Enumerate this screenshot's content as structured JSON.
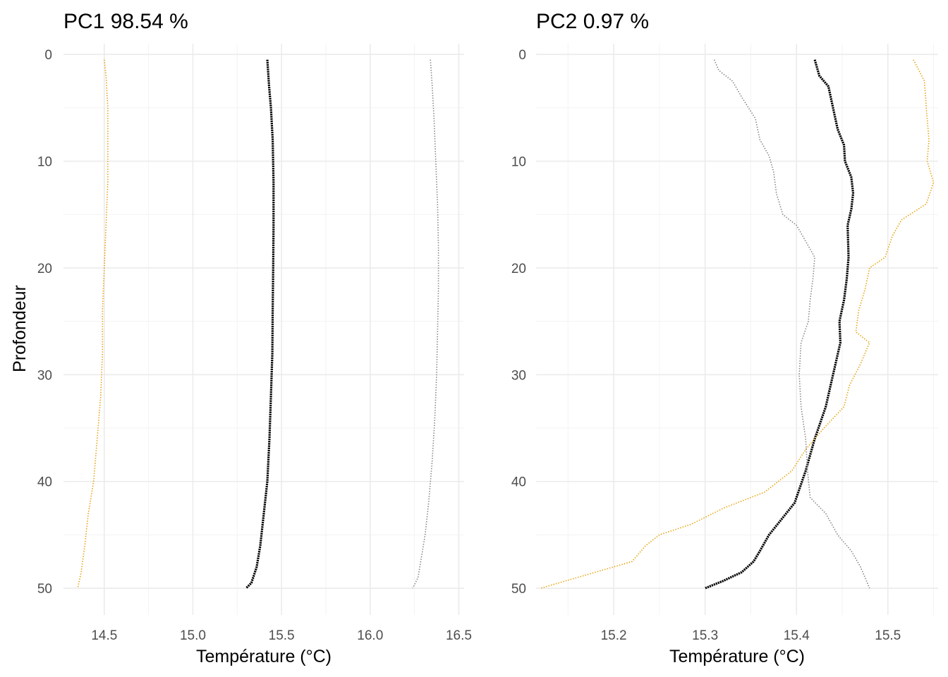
{
  "colors": {
    "mean": "#000000",
    "minus": "#e69f00",
    "plus": "#808080",
    "grid_major": "#ebebeb",
    "grid_minor": "#f3f3f3",
    "tick_text": "#4d4d4d"
  },
  "chart_data": [
    {
      "type": "line",
      "title": "PC1 98.54 %",
      "xlabel": "Température (°C)",
      "ylabel": "Profondeur",
      "xlim": [
        14.27,
        16.53
      ],
      "ylim": [
        -1,
        52.5
      ],
      "y_reversed": true,
      "xticks": [
        14.5,
        15.0,
        15.5,
        16.0,
        16.5
      ],
      "xtick_labels": [
        "14.5",
        "15.0",
        "15.5",
        "16.0",
        "16.5"
      ],
      "yticks": [
        0,
        10,
        20,
        30,
        40,
        50
      ],
      "ytick_labels": [
        "0",
        "10",
        "20",
        "30",
        "40",
        "50"
      ],
      "grid": true,
      "series": [
        {
          "key": "mean",
          "style": "solid-dots",
          "points": [
            [
              15.42,
              0.5
            ],
            [
              15.43,
              3
            ],
            [
              15.44,
              5
            ],
            [
              15.45,
              8
            ],
            [
              15.455,
              12
            ],
            [
              15.455,
              16
            ],
            [
              15.453,
              20
            ],
            [
              15.45,
              24
            ],
            [
              15.448,
              28
            ],
            [
              15.44,
              32
            ],
            [
              15.432,
              36
            ],
            [
              15.42,
              40
            ],
            [
              15.4,
              43
            ],
            [
              15.38,
              46
            ],
            [
              15.36,
              48
            ],
            [
              15.33,
              49.5
            ],
            [
              15.3,
              50
            ]
          ]
        },
        {
          "key": "minus",
          "style": "dotted",
          "points": [
            [
              14.5,
              0.5
            ],
            [
              14.51,
              2
            ],
            [
              14.52,
              5
            ],
            [
              14.52,
              8
            ],
            [
              14.52,
              12
            ],
            [
              14.51,
              16
            ],
            [
              14.5,
              20
            ],
            [
              14.49,
              24
            ],
            [
              14.49,
              28
            ],
            [
              14.48,
              32
            ],
            [
              14.46,
              36
            ],
            [
              14.44,
              40
            ],
            [
              14.41,
              43
            ],
            [
              14.39,
              46
            ],
            [
              14.37,
              48.5
            ],
            [
              14.35,
              50
            ]
          ]
        },
        {
          "key": "plus",
          "style": "dotted",
          "points": [
            [
              16.34,
              0.5
            ],
            [
              16.35,
              3
            ],
            [
              16.36,
              6
            ],
            [
              16.37,
              10
            ],
            [
              16.38,
              14
            ],
            [
              16.385,
              18
            ],
            [
              16.385,
              22
            ],
            [
              16.38,
              26
            ],
            [
              16.375,
              30
            ],
            [
              16.365,
              34
            ],
            [
              16.35,
              38
            ],
            [
              16.33,
              42
            ],
            [
              16.31,
              45
            ],
            [
              16.29,
              47
            ],
            [
              16.27,
              49
            ],
            [
              16.24,
              50
            ]
          ]
        }
      ]
    },
    {
      "type": "line",
      "title": "PC2 0.97 %",
      "xlabel": "Température (°C)",
      "ylabel": "",
      "xlim": [
        15.115,
        15.555
      ],
      "ylim": [
        -1,
        52.5
      ],
      "y_reversed": true,
      "xticks": [
        15.2,
        15.3,
        15.4,
        15.5
      ],
      "xtick_labels": [
        "15.2",
        "15.3",
        "15.4",
        "15.5"
      ],
      "yticks": [
        0,
        10,
        20,
        30,
        40,
        50
      ],
      "ytick_labels": [
        "0",
        "10",
        "20",
        "30",
        "40",
        "50"
      ],
      "grid": true,
      "series": [
        {
          "key": "mean",
          "style": "solid-dots",
          "points": [
            [
              15.42,
              0.5
            ],
            [
              15.425,
              2
            ],
            [
              15.435,
              3
            ],
            [
              15.44,
              5
            ],
            [
              15.445,
              7
            ],
            [
              15.452,
              8.5
            ],
            [
              15.453,
              10
            ],
            [
              15.46,
              11.5
            ],
            [
              15.462,
              13
            ],
            [
              15.46,
              14.5
            ],
            [
              15.456,
              16
            ],
            [
              15.457,
              19
            ],
            [
              15.455,
              21
            ],
            [
              15.452,
              23
            ],
            [
              15.447,
              25
            ],
            [
              15.448,
              27
            ],
            [
              15.44,
              30
            ],
            [
              15.432,
              33
            ],
            [
              15.42,
              36
            ],
            [
              15.41,
              39
            ],
            [
              15.398,
              42
            ],
            [
              15.384,
              43.5
            ],
            [
              15.37,
              45
            ],
            [
              15.36,
              46.5
            ],
            [
              15.353,
              47.5
            ],
            [
              15.34,
              48.5
            ],
            [
              15.32,
              49.3
            ],
            [
              15.3,
              50
            ]
          ]
        },
        {
          "key": "minus",
          "style": "dotted",
          "points": [
            [
              15.528,
              0.5
            ],
            [
              15.54,
              2.5
            ],
            [
              15.542,
              5
            ],
            [
              15.545,
              8
            ],
            [
              15.543,
              10
            ],
            [
              15.55,
              12
            ],
            [
              15.542,
              14
            ],
            [
              15.515,
              15.5
            ],
            [
              15.505,
              17
            ],
            [
              15.497,
              19
            ],
            [
              15.48,
              20
            ],
            [
              15.475,
              22
            ],
            [
              15.468,
              24
            ],
            [
              15.465,
              26
            ],
            [
              15.48,
              27
            ],
            [
              15.47,
              29
            ],
            [
              15.458,
              31
            ],
            [
              15.452,
              33
            ],
            [
              15.43,
              35
            ],
            [
              15.41,
              37
            ],
            [
              15.395,
              39
            ],
            [
              15.365,
              41
            ],
            [
              15.32,
              42.5
            ],
            [
              15.285,
              44
            ],
            [
              15.25,
              45
            ],
            [
              15.235,
              46
            ],
            [
              15.22,
              47.5
            ],
            [
              15.18,
              48.5
            ],
            [
              15.12,
              50
            ]
          ]
        },
        {
          "key": "plus",
          "style": "dotted",
          "points": [
            [
              15.31,
              0.5
            ],
            [
              15.315,
              1.5
            ],
            [
              15.33,
              2.5
            ],
            [
              15.34,
              4
            ],
            [
              15.355,
              6
            ],
            [
              15.36,
              8
            ],
            [
              15.37,
              9.5
            ],
            [
              15.375,
              11
            ],
            [
              15.378,
              13
            ],
            [
              15.385,
              15
            ],
            [
              15.4,
              16
            ],
            [
              15.41,
              17.5
            ],
            [
              15.42,
              19
            ],
            [
              15.418,
              21
            ],
            [
              15.415,
              23
            ],
            [
              15.413,
              25
            ],
            [
              15.405,
              27
            ],
            [
              15.403,
              30
            ],
            [
              15.405,
              33
            ],
            [
              15.41,
              36
            ],
            [
              15.412,
              39
            ],
            [
              15.415,
              41.5
            ],
            [
              15.432,
              43
            ],
            [
              15.445,
              45
            ],
            [
              15.46,
              46.5
            ],
            [
              15.47,
              48
            ],
            [
              15.475,
              49
            ],
            [
              15.48,
              50
            ]
          ]
        }
      ]
    }
  ]
}
